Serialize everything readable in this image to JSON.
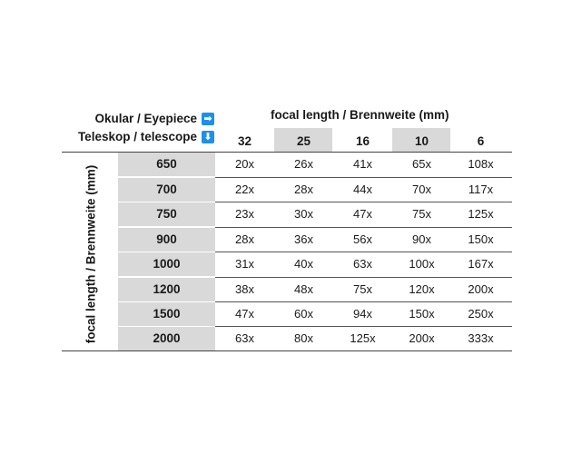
{
  "legend": {
    "eyepiece_label": "Okular / Eyepiece",
    "telescope_label": "Teleskop / telescope",
    "right_arrow": "➡",
    "down_arrow": "⬇"
  },
  "header": {
    "eyepiece_title": "focal length / Brennweite (mm)",
    "eyepieces": [
      "32",
      "25",
      "16",
      "10",
      "6"
    ]
  },
  "side_label": "focal length / Brennweite (mm)",
  "rows": [
    {
      "telescope": "650",
      "values": [
        "20x",
        "26x",
        "41x",
        "65x",
        "108x"
      ]
    },
    {
      "telescope": "700",
      "values": [
        "22x",
        "28x",
        "44x",
        "70x",
        "117x"
      ]
    },
    {
      "telescope": "750",
      "values": [
        "23x",
        "30x",
        "47x",
        "75x",
        "125x"
      ]
    },
    {
      "telescope": "900",
      "values": [
        "28x",
        "36x",
        "56x",
        "90x",
        "150x"
      ]
    },
    {
      "telescope": "1000",
      "values": [
        "31x",
        "40x",
        "63x",
        "100x",
        "167x"
      ]
    },
    {
      "telescope": "1200",
      "values": [
        "38x",
        "48x",
        "75x",
        "120x",
        "200x"
      ]
    },
    {
      "telescope": "1500",
      "values": [
        "47x",
        "60x",
        "94x",
        "150x",
        "250x"
      ]
    },
    {
      "telescope": "2000",
      "values": [
        "63x",
        "80x",
        "125x",
        "200x",
        "333x"
      ]
    }
  ],
  "colors": {
    "shade": "#d9d9d9",
    "arrow": "#1e90e6"
  }
}
